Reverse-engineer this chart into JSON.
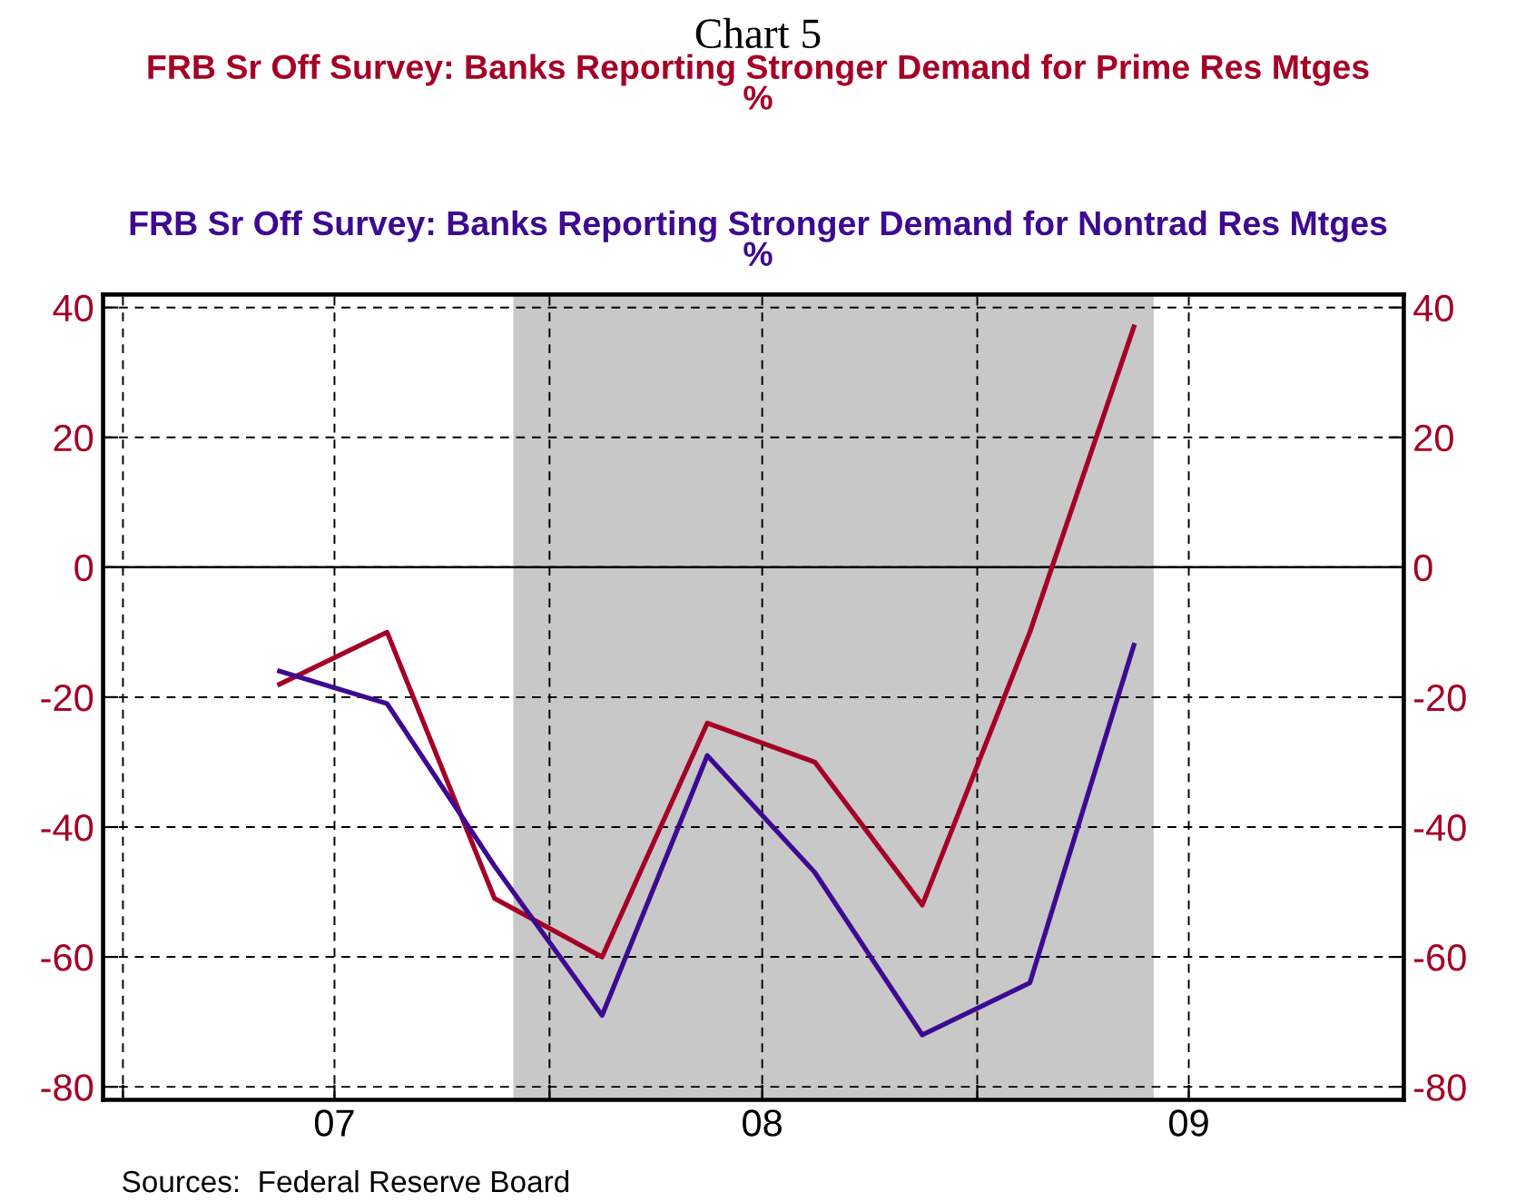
{
  "chart_data": {
    "type": "line",
    "title": "Chart 5",
    "legend": "top",
    "x": [
      "2007-05-15",
      "2007-08-15",
      "2007-11-15",
      "2008-02-15",
      "2008-05-15",
      "2008-08-15",
      "2008-11-15",
      "2009-02-15",
      "2009-05-15"
    ],
    "series": [
      {
        "name": "FRB Sr Off Survey: Banks Reporting Stronger Demand for Prime Res Mtges\n%",
        "color": "#a50026",
        "values": [
          -18,
          -10,
          -51,
          -60,
          -24,
          -30,
          -52,
          -10,
          37
        ]
      },
      {
        "name": "FRB Sr Off Survey: Banks Reporting Stronger Demand for Nontrad Res Mtges\n%",
        "color": "#3d0a91",
        "values": [
          -16,
          -21,
          -46,
          -69,
          -29,
          -47,
          -72,
          -64,
          -12
        ]
      }
    ],
    "xlim": [
      "2006-12-15",
      "2010-01-01"
    ],
    "xticks": [
      {
        "value": "2007-01-01",
        "label": null
      },
      {
        "value": "2007-07-01",
        "label": "07"
      },
      {
        "value": "2008-01-01",
        "label": null
      },
      {
        "value": "2008-07-01",
        "label": "08"
      },
      {
        "value": "2009-01-01",
        "label": null
      },
      {
        "value": "2009-07-01",
        "label": "09"
      }
    ],
    "ylim": [
      -82,
      42
    ],
    "yticks": [
      -80,
      -60,
      -40,
      -20,
      0,
      20,
      40
    ],
    "y2lim": [
      -82,
      42
    ],
    "y2ticks": [
      -80,
      -60,
      -40,
      -20,
      0,
      20,
      40
    ],
    "grid": true,
    "line_style": "solid",
    "marker": "none",
    "ref_lines": [
      {
        "axis": "y",
        "value": 0,
        "label": null,
        "color": "#000000"
      }
    ],
    "bands": [
      {
        "axis": "x",
        "from": "2007-12-01",
        "to": "2009-06-01",
        "label": null,
        "color": "#c8c8c8"
      }
    ],
    "annotations": [
      "Sources:  Federal Reserve Board"
    ]
  }
}
